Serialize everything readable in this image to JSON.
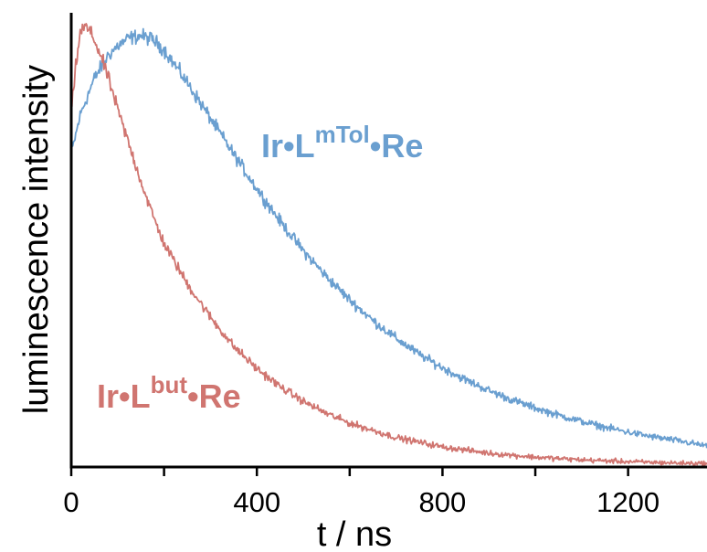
{
  "chart_data": {
    "type": "line",
    "title": "",
    "xlabel": "t / ns",
    "ylabel": "luminescence intensity",
    "xlim": [
      0,
      1370
    ],
    "ylim": [
      0,
      1.0
    ],
    "x_ticks": [
      0,
      400,
      800,
      1200
    ],
    "x_minor_ticks": [
      200,
      600,
      1000
    ],
    "y_tick_labels_shown": false,
    "grid": false,
    "legend": "inline labels",
    "series": [
      {
        "id": "mtol",
        "label": {
          "main": "Ir•L",
          "sup": "mTol",
          "end": "•Re"
        },
        "color": "#6a9fd0",
        "x": [
          0,
          20,
          50,
          80,
          100,
          125,
          150,
          175,
          200,
          250,
          300,
          350,
          400,
          450,
          500,
          550,
          600,
          650,
          700,
          750,
          800,
          850,
          900,
          950,
          1000,
          1050,
          1100,
          1150,
          1200,
          1250,
          1300,
          1370
        ],
        "y": [
          0.7,
          0.79,
          0.87,
          0.922,
          0.942,
          0.96,
          0.965,
          0.957,
          0.934,
          0.86,
          0.78,
          0.7,
          0.623,
          0.55,
          0.484,
          0.426,
          0.374,
          0.328,
          0.288,
          0.252,
          0.222,
          0.195,
          0.171,
          0.15,
          0.132,
          0.116,
          0.102,
          0.089,
          0.078,
          0.068,
          0.06,
          0.047
        ]
      },
      {
        "id": "but",
        "label": {
          "main": "Ir•L",
          "sup": "but",
          "end": "•Re"
        },
        "color": "#d07570",
        "x": [
          0,
          10,
          20,
          30,
          40,
          50,
          60,
          80,
          100,
          125,
          150,
          175,
          200,
          250,
          300,
          350,
          400,
          450,
          500,
          550,
          600,
          700,
          800,
          900,
          1000,
          1100,
          1200,
          1300,
          1370
        ],
        "y": [
          0.79,
          0.9,
          0.975,
          0.985,
          0.975,
          0.955,
          0.93,
          0.87,
          0.8,
          0.72,
          0.64,
          0.565,
          0.5,
          0.41,
          0.335,
          0.27,
          0.22,
          0.18,
          0.147,
          0.12,
          0.098,
          0.066,
          0.045,
          0.031,
          0.022,
          0.016,
          0.012,
          0.009,
          0.008
        ]
      }
    ]
  }
}
